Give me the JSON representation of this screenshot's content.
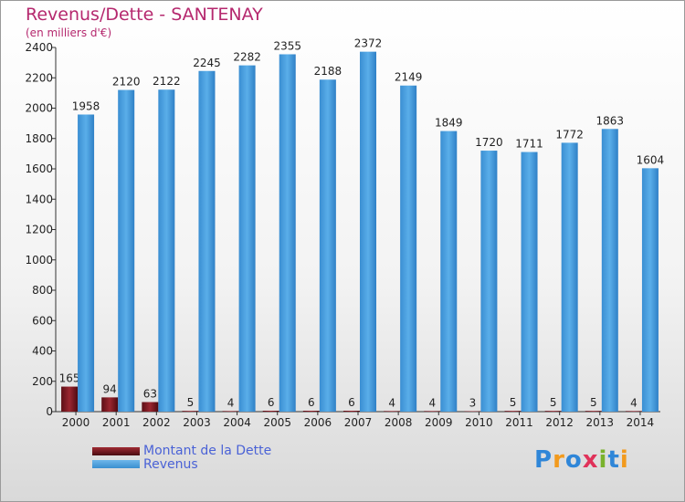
{
  "chart_data": {
    "type": "bar",
    "title": "Revenus/Dette - SANTENAY",
    "subtitle": "(en milliers d'€)",
    "xlabel": "",
    "ylabel": "",
    "ylim": [
      0,
      2400
    ],
    "yticks": [
      0,
      200,
      400,
      600,
      800,
      1000,
      1200,
      1400,
      1600,
      1800,
      2000,
      2200,
      2400
    ],
    "categories": [
      "2000",
      "2001",
      "2002",
      "2003",
      "2004",
      "2005",
      "2006",
      "2007",
      "2008",
      "2009",
      "2010",
      "2011",
      "2012",
      "2013",
      "2014"
    ],
    "series": [
      {
        "name": "Montant de la Dette",
        "color": "#7a1a22",
        "values": [
          165,
          94,
          63,
          5,
          4,
          6,
          6,
          6,
          4,
          4,
          3,
          5,
          5,
          5,
          4
        ]
      },
      {
        "name": "Revenus",
        "color": "#4fa3e3",
        "values": [
          1958,
          2120,
          2122,
          2245,
          2282,
          2355,
          2188,
          2372,
          2149,
          1849,
          1720,
          1711,
          1772,
          1863,
          1604
        ]
      }
    ],
    "legend": "bottom-left"
  },
  "logo": {
    "p": "P",
    "r": "r",
    "o": "o",
    "x": "x",
    "i": "i",
    "t": "t",
    "i2": "i"
  }
}
